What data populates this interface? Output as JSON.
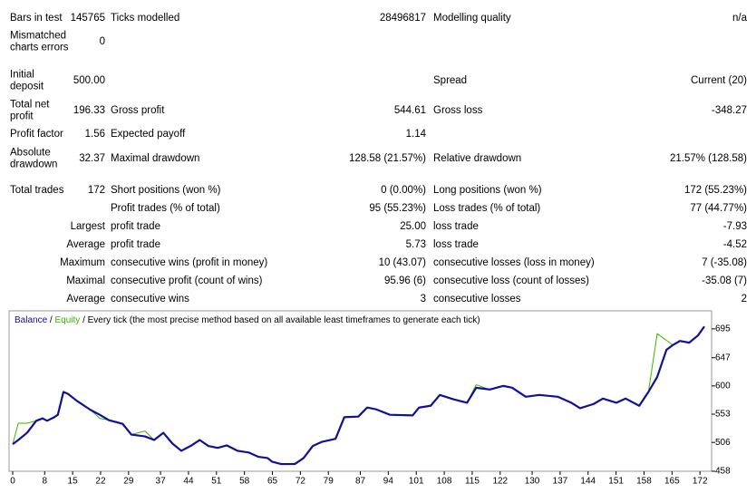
{
  "report": {
    "rows": [
      {
        "left": [
          "Bars in test",
          "145765"
        ],
        "middle": [
          "Ticks modelled",
          "28496817"
        ],
        "right": [
          "Modelling quality",
          "n/a"
        ]
      },
      {
        "left": [
          "Mismatched\ncharts errors",
          "0"
        ]
      },
      {
        "left": [
          "Initial\ndeposit",
          "500.00"
        ],
        "right": [
          "Spread",
          "Current (20)"
        ]
      },
      {
        "left": [
          "Total net\nprofit",
          "196.33"
        ],
        "middle": [
          "Gross profit",
          "544.61"
        ],
        "right": [
          "Gross loss",
          "-348.27"
        ]
      },
      {
        "left": [
          "Profit factor",
          "1.56"
        ],
        "middle": [
          "Expected payoff",
          "1.14"
        ]
      },
      {
        "left": [
          "Absolute\ndrawdown",
          "32.37"
        ],
        "middle": [
          "Maximal drawdown",
          "128.58 (21.57%)"
        ],
        "right": [
          "Relative drawdown",
          "21.57% (128.58)"
        ]
      },
      {
        "left": [
          "Total trades",
          "172"
        ],
        "middle": [
          "Short positions (won %)",
          "0 (0.00%)"
        ],
        "right": [
          "Long positions (won %)",
          "172 (55.23%)"
        ]
      },
      {
        "middle": [
          "Profit trades (% of total)",
          "95 (55.23%)"
        ],
        "right": [
          "Loss trades (% of total)",
          "77 (44.77%)"
        ]
      },
      {
        "left": [
          "Largest"
        ],
        "middle": [
          "profit trade",
          "25.00"
        ],
        "right": [
          "loss trade",
          "-7.93"
        ]
      },
      {
        "left": [
          "Average"
        ],
        "middle": [
          "profit trade",
          "5.73"
        ],
        "right": [
          "loss trade",
          "-4.52"
        ]
      },
      {
        "left": [
          "Maximum"
        ],
        "middle": [
          "consecutive wins (profit in money)",
          "10 (43.07)"
        ],
        "right": [
          "consecutive losses (loss in money)",
          "7 (-35.08)"
        ]
      },
      {
        "left": [
          "Maximal"
        ],
        "middle": [
          "consecutive profit (count of wins)",
          "95.96 (6)"
        ],
        "right": [
          "consecutive loss (count of losses)",
          "-35.08 (7)"
        ]
      },
      {
        "left": [
          "Average"
        ],
        "middle": [
          "consecutive wins",
          "3"
        ],
        "right": [
          "consecutive losses",
          "2"
        ]
      }
    ]
  },
  "chart_data": {
    "type": "line",
    "legend_separator": "/",
    "subtitle": "Every tick (the most precise method based on all available least timeframes to generate each tick)",
    "x": [
      0,
      1.4,
      3.6,
      5.9,
      7.5,
      8.6,
      10.4,
      11.3,
      12.7,
      13.8,
      16.1,
      19.5,
      21.8,
      24.1,
      27.5,
      29.7,
      33.1,
      35.4,
      37.7,
      40,
      42.2,
      44.5,
      46.8,
      49,
      51.3,
      53.6,
      56.3,
      59.2,
      61.5,
      63.8,
      64.9,
      67.2,
      70.6,
      72.8,
      75.1,
      77.4,
      80.8,
      83,
      86.5,
      88.7,
      91,
      94.4,
      100.1,
      101.7,
      104.6,
      106.9,
      110.2,
      113.7,
      116,
      119.4,
      122.8,
      125,
      128.4,
      131.8,
      136.4,
      139.8,
      142,
      145.4,
      147.7,
      151.1,
      153.4,
      156.8,
      159.1,
      161.3,
      163.6,
      165.2,
      167,
      169.3,
      171.5,
      173.1
    ],
    "series": [
      {
        "name": "Balance",
        "color": "#10109a",
        "values": [
          503,
          510,
          522,
          542,
          546,
          542,
          548,
          552,
          590,
          587,
          575,
          560,
          552,
          543,
          537,
          519,
          516,
          510,
          522,
          504,
          492,
          500,
          510,
          500,
          497,
          501,
          492,
          489,
          482,
          480,
          474,
          470,
          470,
          480,
          500,
          507,
          512,
          548,
          549,
          564,
          561,
          552,
          551,
          564,
          567,
          585,
          578,
          572,
          597,
          594,
          600,
          597,
          582,
          585,
          582,
          572,
          563,
          570,
          579,
          572,
          579,
          567,
          590,
          615,
          660,
          668,
          675,
          672,
          684,
          699
        ]
      },
      {
        "name": "Equity",
        "color": "#3cb400",
        "values": [
          503,
          538,
          538,
          542,
          546,
          542,
          548,
          552,
          590,
          587,
          575,
          560,
          546,
          543,
          537,
          519,
          525,
          510,
          522,
          504,
          492,
          500,
          510,
          500,
          497,
          501,
          492,
          489,
          482,
          480,
          474,
          470,
          470,
          480,
          500,
          507,
          512,
          548,
          549,
          564,
          561,
          552,
          551,
          564,
          567,
          585,
          578,
          572,
          602,
          594,
          600,
          597,
          582,
          585,
          582,
          572,
          563,
          570,
          579,
          572,
          579,
          567,
          590,
          687,
          676,
          668,
          675,
          672,
          684,
          699
        ]
      }
    ],
    "xlim": [
      0,
      174
    ],
    "ylim": [
      458,
      725
    ],
    "xticks": [
      0,
      8,
      15,
      22,
      29,
      37,
      44,
      51,
      58,
      65,
      72,
      79,
      87,
      94,
      101,
      108,
      115,
      122,
      130,
      137,
      144,
      151,
      158,
      165,
      172
    ],
    "yticks": [
      458,
      506,
      553,
      600,
      647,
      695
    ]
  }
}
